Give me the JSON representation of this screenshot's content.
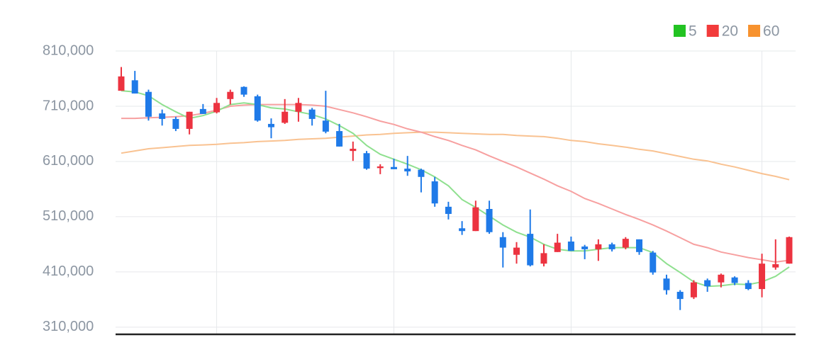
{
  "chart_data": {
    "type": "candlestick",
    "ylim": [
      297000,
      810000
    ],
    "yticks": [
      {
        "value": 810000,
        "label": "810,000"
      },
      {
        "value": 710000,
        "label": "710,000"
      },
      {
        "value": 610000,
        "label": "610,000"
      },
      {
        "value": 510000,
        "label": "510,000"
      },
      {
        "value": 410000,
        "label": "410,000"
      },
      {
        "value": 310000,
        "label": "310,000"
      }
    ],
    "grid": true,
    "xgrid": [
      7,
      20,
      33,
      47
    ],
    "legend": "top-right",
    "up_color": "#ec3340",
    "down_color": "#1f7ae8",
    "candles": {
      "open": [
        738000,
        757000,
        736000,
        697000,
        687000,
        669000,
        705000,
        699000,
        723000,
        745000,
        728000,
        678000,
        680000,
        700000,
        704000,
        684000,
        665000,
        629000,
        625000,
        598000,
        600000,
        597000,
        595000,
        574000,
        528000,
        489000,
        484000,
        524000,
        473000,
        441000,
        479000,
        425000,
        446000,
        465000,
        456000,
        451000,
        460000,
        454000,
        469000,
        445000,
        398000,
        374000,
        364000,
        395000,
        391000,
        400000,
        390000,
        379000,
        418000,
        425000
      ],
      "high": [
        781000,
        774000,
        740000,
        704000,
        691000,
        700000,
        714000,
        725000,
        740000,
        746000,
        731000,
        688000,
        723000,
        725000,
        707000,
        738000,
        678000,
        646000,
        629000,
        605000,
        615000,
        620000,
        597000,
        582000,
        537000,
        502000,
        539000,
        539000,
        482000,
        464000,
        523000,
        460000,
        479000,
        474000,
        459000,
        469000,
        463000,
        473000,
        469000,
        448000,
        405000,
        377000,
        395000,
        398000,
        407000,
        402000,
        395000,
        443000,
        469000,
        474000
      ],
      "low": [
        738000,
        733000,
        684000,
        675000,
        665000,
        659000,
        696000,
        697000,
        713000,
        727000,
        682000,
        652000,
        678000,
        682000,
        675000,
        661000,
        637000,
        611000,
        595000,
        587000,
        596000,
        584000,
        554000,
        528000,
        505000,
        477000,
        484000,
        479000,
        418000,
        425000,
        420000,
        420000,
        446000,
        448000,
        433000,
        430000,
        447000,
        451000,
        441000,
        405000,
        369000,
        341000,
        361000,
        374000,
        382000,
        386000,
        377000,
        364000,
        414000,
        425000
      ],
      "close": [
        764000,
        733000,
        691000,
        687000,
        669000,
        700000,
        696000,
        716000,
        736000,
        731000,
        684000,
        672000,
        700000,
        716000,
        687000,
        664000,
        637000,
        633000,
        597000,
        601000,
        596000,
        592000,
        582000,
        534000,
        515000,
        484000,
        527000,
        482000,
        454000,
        454000,
        422000,
        444000,
        463000,
        448000,
        451000,
        460000,
        451000,
        470000,
        446000,
        409000,
        377000,
        361000,
        391000,
        384000,
        405000,
        390000,
        379000,
        425000,
        424000,
        473000
      ]
    },
    "series": [
      {
        "name": "5",
        "color": "#22c322",
        "line_color": "#8fe08f",
        "values": [
          738000,
          736000,
          729000,
          713000,
          700000,
          688000,
          693000,
          701000,
          713000,
          716000,
          713000,
          707000,
          705000,
          700000,
          695000,
          687000,
          675000,
          661000,
          639000,
          623000,
          614000,
          605000,
          595000,
          582000,
          566000,
          541000,
          527000,
          511000,
          495000,
          482000,
          473000,
          460000,
          451000,
          448000,
          448000,
          451000,
          454000,
          454000,
          454000,
          445000,
          425000,
          409000,
          392000,
          384000,
          385000,
          388000,
          387000,
          392000,
          402000,
          419000
        ]
      },
      {
        "name": "20",
        "color": "#f23b3b",
        "line_color": "#f7a0a0",
        "values": [
          688000,
          688000,
          689000,
          690000,
          691000,
          693000,
          697000,
          703000,
          710000,
          712000,
          713000,
          713000,
          713000,
          713000,
          712000,
          710000,
          704000,
          698000,
          691000,
          683000,
          677000,
          669000,
          663000,
          655000,
          648000,
          639000,
          631000,
          620000,
          610000,
          600000,
          589000,
          578000,
          566000,
          556000,
          543000,
          534000,
          524000,
          514000,
          505000,
          495000,
          484000,
          472000,
          460000,
          454000,
          446000,
          441000,
          436000,
          432000,
          428000,
          431000
        ]
      },
      {
        "name": "60",
        "color": "#f7922e",
        "line_color": "#f9c291",
        "values": [
          625000,
          629000,
          633000,
          635000,
          637000,
          639000,
          640000,
          641000,
          643000,
          644000,
          646000,
          647000,
          648000,
          650000,
          651000,
          652000,
          654000,
          656000,
          658000,
          659000,
          661000,
          662000,
          663000,
          663000,
          662000,
          661000,
          660000,
          659000,
          659000,
          657000,
          656000,
          655000,
          652000,
          648000,
          646000,
          642000,
          639000,
          636000,
          632000,
          629000,
          624000,
          619000,
          614000,
          611000,
          605000,
          600000,
          594000,
          588000,
          583000,
          577000
        ]
      }
    ]
  }
}
